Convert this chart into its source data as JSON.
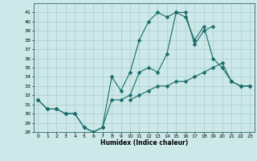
{
  "xlabel": "Humidex (Indice chaleur)",
  "ylabel": "",
  "bg_color": "#cce8e8",
  "grid_color": "#aacccc",
  "line_color": "#1a6b6b",
  "x": [
    0,
    1,
    2,
    3,
    4,
    5,
    6,
    7,
    8,
    9,
    10,
    11,
    12,
    13,
    14,
    15,
    16,
    17,
    18,
    19,
    20,
    21,
    22,
    23
  ],
  "line1": [
    31.5,
    30.5,
    30.5,
    30.0,
    30.0,
    28.5,
    28.0,
    28.5,
    34.0,
    32.5,
    34.5,
    38.0,
    40.0,
    41.0,
    40.5,
    41.0,
    40.5,
    38.0,
    39.5,
    36.0,
    35.0,
    33.5,
    33.0,
    33.0
  ],
  "line2": [
    31.5,
    30.5,
    30.5,
    30.0,
    30.0,
    28.5,
    28.0,
    28.5,
    31.5,
    31.5,
    32.0,
    34.5,
    35.0,
    34.5,
    36.5,
    41.0,
    41.0,
    37.5,
    39.0,
    39.5,
    null,
    null,
    null,
    null
  ],
  "line3": [
    null,
    null,
    null,
    null,
    null,
    null,
    null,
    null,
    null,
    null,
    31.5,
    32.0,
    32.5,
    33.0,
    33.0,
    33.5,
    33.5,
    34.0,
    34.5,
    35.0,
    35.5,
    33.5,
    33.0,
    33.0
  ],
  "xlim": [
    -0.5,
    23.5
  ],
  "ylim": [
    28,
    42
  ],
  "yticks": [
    28,
    29,
    30,
    31,
    32,
    33,
    34,
    35,
    36,
    37,
    38,
    39,
    40,
    41
  ],
  "xticks": [
    0,
    1,
    2,
    3,
    4,
    5,
    6,
    7,
    8,
    9,
    10,
    11,
    12,
    13,
    14,
    15,
    16,
    17,
    18,
    19,
    20,
    21,
    22,
    23
  ]
}
